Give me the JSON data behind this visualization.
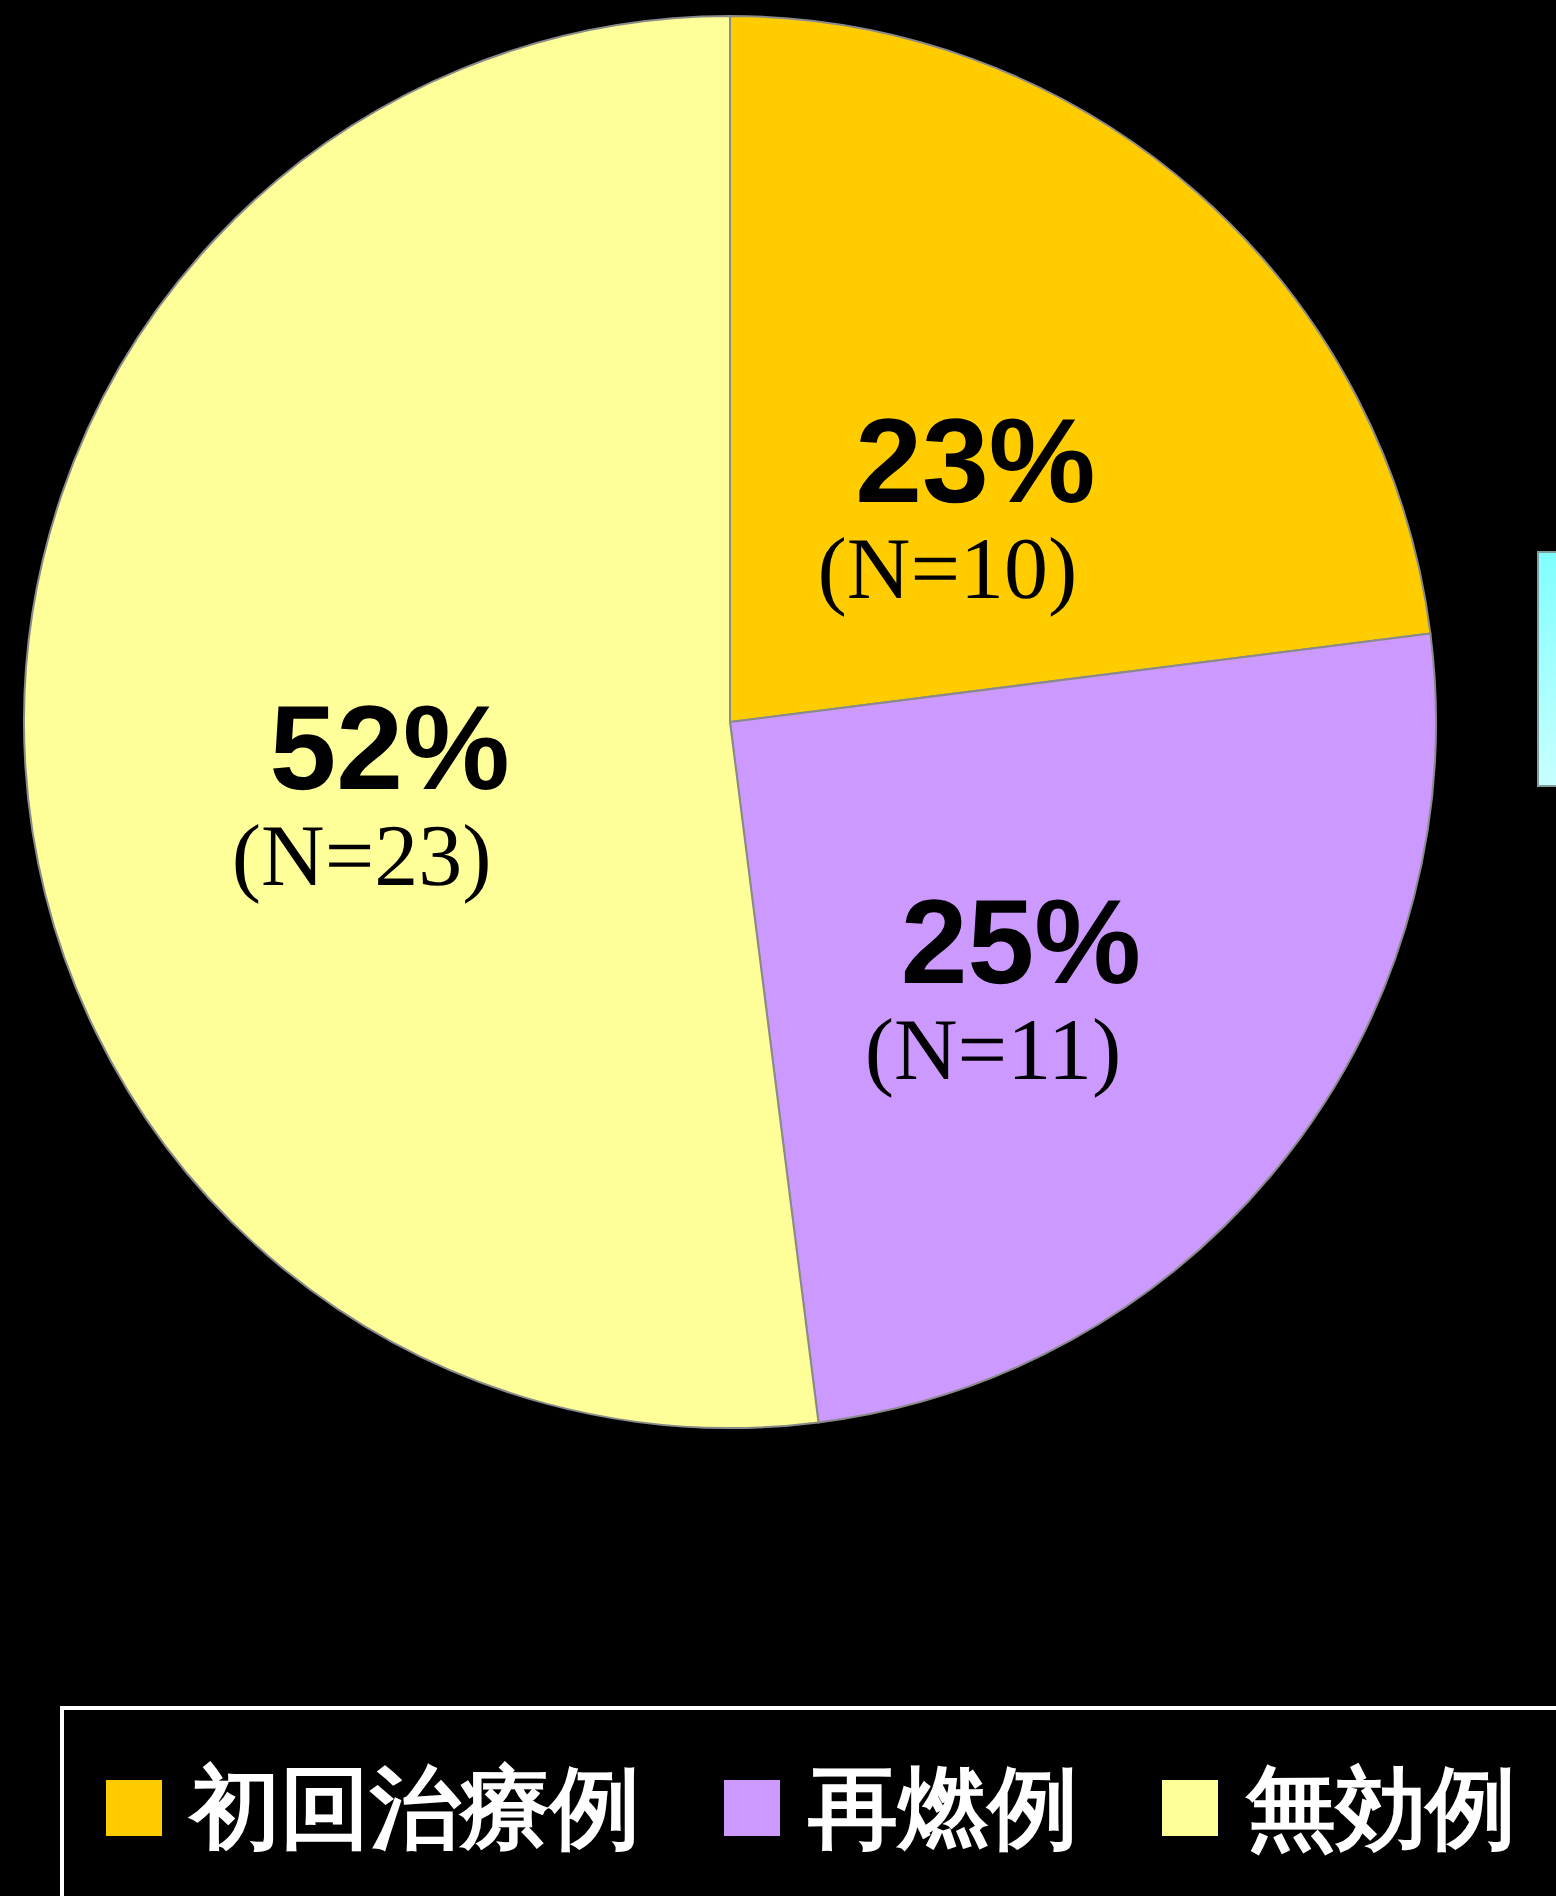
{
  "chart_data": {
    "type": "pie",
    "categories": [
      "初回治療例",
      "再燃例",
      "無効例"
    ],
    "values": [
      23,
      25,
      52
    ],
    "colors": [
      "#ffcc00",
      "#cc99ff",
      "#ffff99"
    ],
    "value_labels": [
      "23%\n(N=10)",
      "25%\n(N=11)",
      "52%\n(N=23)"
    ],
    "legend": "bottom"
  }
}
